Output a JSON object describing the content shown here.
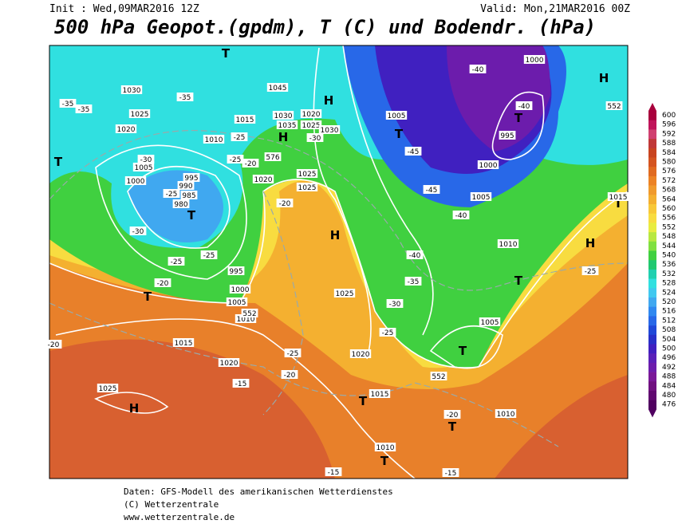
{
  "header": {
    "init": "Init : Wed,09MAR2016 12Z",
    "valid": "Valid: Mon,21MAR2016 00Z",
    "title": "500 hPa Geopot.(gpdm), T (C) und Bodendr. (hPa)"
  },
  "map": {
    "labels": [
      "H",
      "H",
      "H",
      "H",
      "H",
      "H",
      "T",
      "T",
      "T",
      "T",
      "T",
      "T",
      "T",
      "T",
      "T",
      "T",
      "T",
      "T",
      "1030",
      "1025",
      "1020",
      "1010",
      "1005",
      "1000",
      "995",
      "990",
      "985",
      "980",
      "1015",
      "1035",
      "1030",
      "1020",
      "1025",
      "1030",
      "1045",
      "1025",
      "1025",
      "1020",
      "1005",
      "1000",
      "995",
      "1000",
      "1005",
      "1010",
      "1015",
      "1025",
      "1020",
      "1005",
      "1015",
      "1010",
      "1010",
      "1025",
      "1020",
      "1015",
      "1010",
      "1005",
      "1000",
      "995",
      "-35",
      "-35",
      "-35",
      "-25",
      "-25",
      "-20",
      "-30",
      "-25",
      "-30",
      "-25",
      "-25",
      "-20",
      "-30",
      "-20",
      "-40",
      "-40",
      "-45",
      "-45",
      "-40",
      "-40",
      "-35",
      "-30",
      "-25",
      "-25",
      "-20",
      "-15",
      "-20",
      "-15",
      "-15",
      "-25",
      "-20",
      "552",
      "552",
      "552",
      "576"
    ]
  },
  "legend": {
    "levels": [
      600,
      596,
      592,
      588,
      584,
      580,
      576,
      572,
      568,
      564,
      560,
      556,
      552,
      548,
      544,
      540,
      536,
      532,
      528,
      524,
      520,
      516,
      512,
      508,
      504,
      500,
      496,
      492,
      488,
      484,
      480,
      476
    ],
    "colors": [
      "#a8003c",
      "#c0145a",
      "#d04070",
      "#c03838",
      "#c84420",
      "#d45420",
      "#e06a20",
      "#ec8224",
      "#f09a2c",
      "#f4b030",
      "#f8c838",
      "#f8dc40",
      "#e8ec40",
      "#b8e840",
      "#80e040",
      "#40d040",
      "#20c870",
      "#20d0b0",
      "#30e0e0",
      "#40c8f0",
      "#40a8f0",
      "#3088f0",
      "#2868e8",
      "#2048d8",
      "#2830c8",
      "#4020c0",
      "#5a20b8",
      "#6c1cac",
      "#7a1898",
      "#701080",
      "#600870",
      "#500060"
    ]
  },
  "footer": {
    "lines": [
      "Daten: GFS-Modell des amerikanischen Wetterdienstes",
      "(C) Wetterzentrale",
      "www.wetterzentrale.de"
    ]
  }
}
